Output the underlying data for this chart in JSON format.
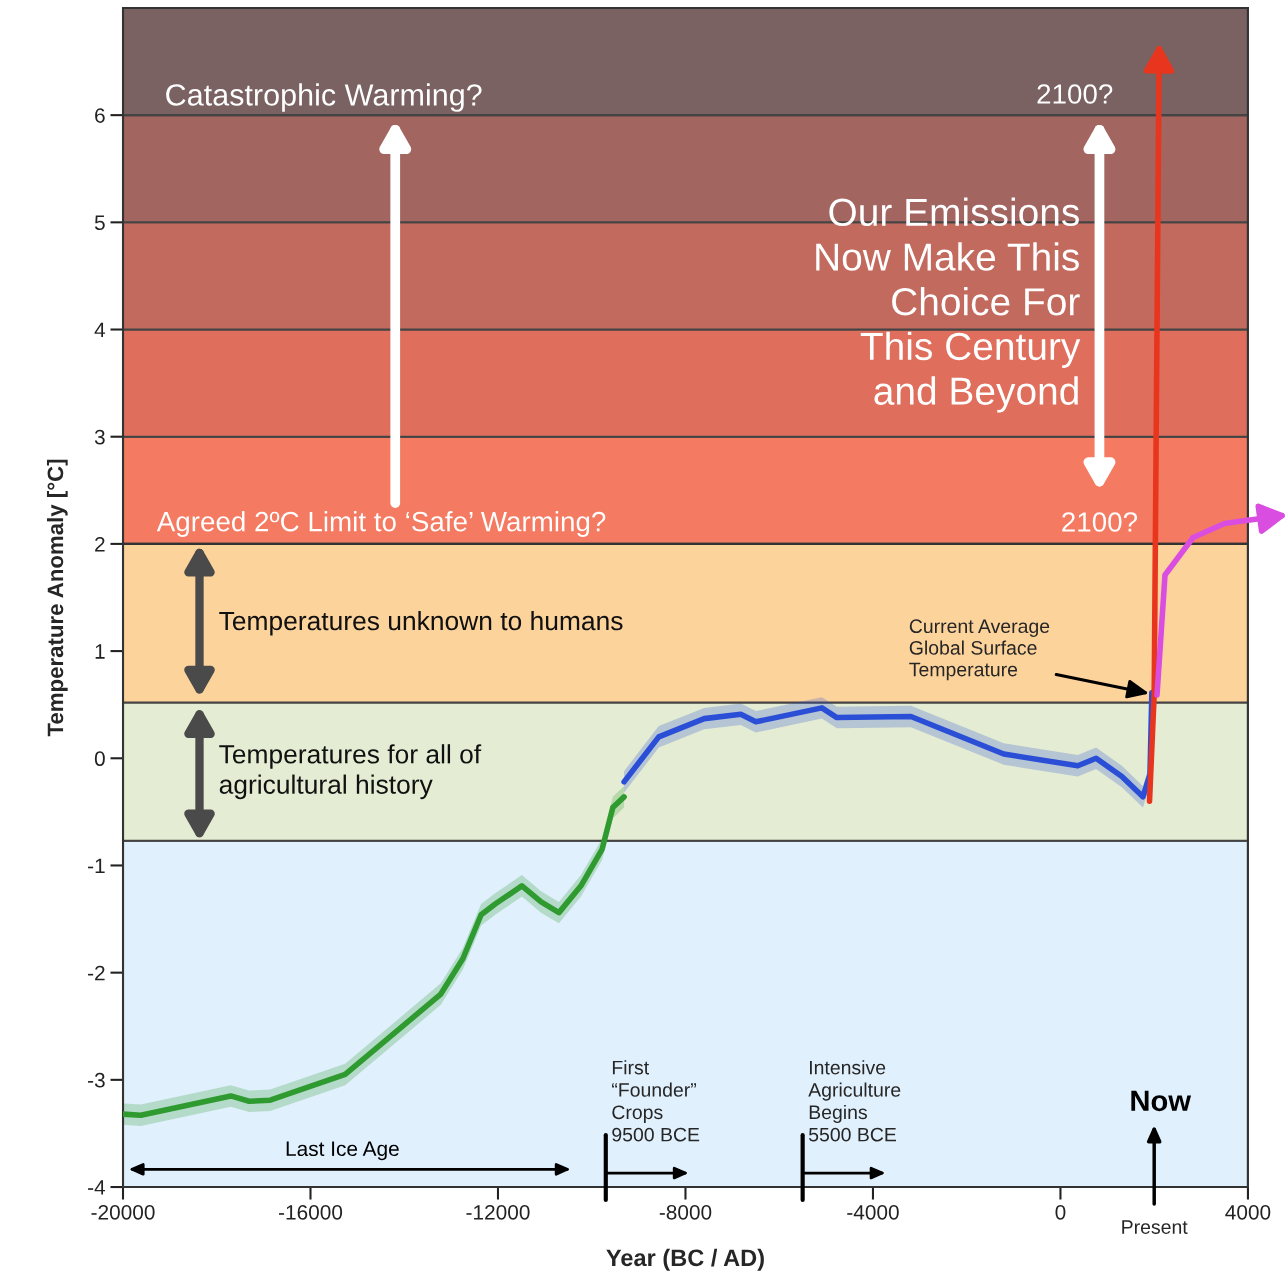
{
  "chart_data": {
    "type": "line",
    "xlabel": "Year (BC / AD)",
    "ylabel": "Temperature Anomaly [°C]",
    "xlim": [
      -20000,
      4000
    ],
    "ylim": [
      -4,
      7
    ],
    "xticks": [
      -20000,
      -16000,
      -12000,
      -8000,
      -4000,
      0,
      4000
    ],
    "yticks": [
      -4,
      -3,
      -2,
      -1,
      0,
      1,
      2,
      3,
      4,
      5,
      6
    ],
    "bands": [
      {
        "axis": "y",
        "from": -4,
        "to": -0.77,
        "color": "#e0f0fc"
      },
      {
        "axis": "y",
        "from": -0.77,
        "to": 0.52,
        "color": "#e4ecd3",
        "label": "Temperatures for all of\nagricultural history"
      },
      {
        "axis": "y",
        "from": 0.52,
        "to": 2,
        "color": "#fdd39c",
        "label": "Temperatures unknown to humans"
      },
      {
        "axis": "y",
        "from": 2,
        "to": 3,
        "color": "#f57a62"
      },
      {
        "axis": "y",
        "from": 3,
        "to": 4,
        "color": "#df6f5c"
      },
      {
        "axis": "y",
        "from": 4,
        "to": 5,
        "color": "#c36a5e"
      },
      {
        "axis": "y",
        "from": 5,
        "to": 6,
        "color": "#a26560"
      },
      {
        "axis": "y",
        "from": 6,
        "to": 7,
        "color": "#7a6263"
      }
    ],
    "ref_lines": [
      {
        "axis": "y",
        "value": 2,
        "label": "Agreed 2ºC Limit to ‘Safe’ Warming?",
        "color": "#333333"
      }
    ],
    "series": [
      {
        "color": "#2f9a2f",
        "x": [
          -20000,
          -19620,
          -17700,
          -17310,
          -16860,
          -15260,
          -13220,
          -12750,
          -12360,
          -12060,
          -11490,
          -11080,
          -10700,
          -10230,
          -9780,
          -9550,
          -9310
        ],
        "values": [
          -3.32,
          -3.33,
          -3.15,
          -3.2,
          -3.19,
          -2.95,
          -2.2,
          -1.87,
          -1.46,
          -1.36,
          -1.19,
          -1.34,
          -1.44,
          -1.19,
          -0.85,
          -0.46,
          -0.36
        ],
        "lower": [
          -3.42,
          -3.43,
          -3.25,
          -3.3,
          -3.29,
          -3.05,
          -2.3,
          -1.97,
          -1.56,
          -1.46,
          -1.29,
          -1.44,
          -1.54,
          -1.29,
          -0.95,
          -0.56,
          -0.46
        ],
        "upper": [
          -3.22,
          -3.23,
          -3.05,
          -3.1,
          -3.09,
          -2.85,
          -2.1,
          -1.77,
          -1.36,
          -1.26,
          -1.09,
          -1.24,
          -1.34,
          -1.09,
          -0.75,
          -0.36,
          -0.26
        ]
      },
      {
        "color": "#2a4fd6",
        "x": [
          -9310,
          -8570,
          -7600,
          -6820,
          -6500,
          -5090,
          -4770,
          -3190,
          -1210,
          370,
          760,
          1310,
          1760,
          1910,
          1950
        ],
        "values": [
          -0.22,
          0.2,
          0.37,
          0.41,
          0.34,
          0.47,
          0.38,
          0.39,
          0.04,
          -0.07,
          0.0,
          -0.17,
          -0.36,
          -0.15,
          0.61
        ],
        "lower": [
          -0.32,
          0.1,
          0.27,
          0.31,
          0.24,
          0.37,
          0.28,
          0.29,
          -0.06,
          -0.17,
          -0.1,
          -0.27,
          -0.46,
          -0.25,
          0.51
        ],
        "upper": [
          -0.12,
          0.3,
          0.47,
          0.51,
          0.44,
          0.57,
          0.48,
          0.49,
          0.14,
          0.03,
          0.1,
          -0.07,
          -0.26,
          -0.05,
          0.71
        ]
      },
      {
        "color": "#e8351e",
        "x": [
          1900,
          2000,
          2100
        ],
        "values": [
          -0.4,
          0.6,
          6.3
        ]
      },
      {
        "color": "#d94ee0",
        "x": [
          2060,
          2230,
          2830,
          3500,
          4000
        ],
        "values": [
          0.59,
          1.71,
          2.06,
          2.19,
          2.22
        ]
      }
    ],
    "annotations": [
      "Catastrophic Warming?",
      "2100?",
      "Our Emissions\nNow Make This\nChoice For\nThis Century\nand Beyond",
      "2100?",
      {
        "text": "Current Average\nGlobal Surface\nTemperature",
        "x": 1950,
        "y": 0.6
      },
      "Last Ice Age",
      {
        "text": "First\n“Founder”\nCrops\n9500 BCE",
        "x": -9700,
        "y": -4
      },
      {
        "text": "Intensive\nAgriculture\nBegins\n5500 BCE",
        "x": -5500,
        "y": -4
      },
      "Now",
      {
        "text": "Present",
        "x": 2000,
        "y": -4
      }
    ]
  }
}
